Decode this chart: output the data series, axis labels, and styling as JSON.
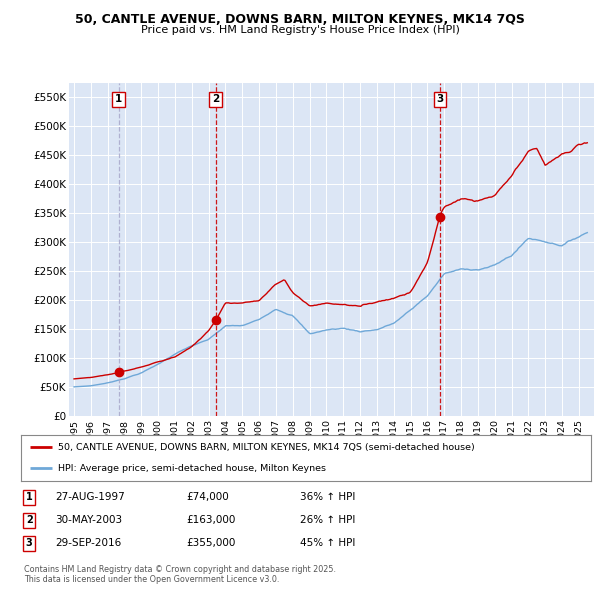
{
  "title": "50, CANTLE AVENUE, DOWNS BARN, MILTON KEYNES, MK14 7QS",
  "subtitle": "Price paid vs. HM Land Registry's House Price Index (HPI)",
  "ylim": [
    0,
    575000
  ],
  "yticks": [
    0,
    50000,
    100000,
    150000,
    200000,
    250000,
    300000,
    350000,
    400000,
    450000,
    500000,
    550000
  ],
  "ytick_labels": [
    "£0",
    "£50K",
    "£100K",
    "£150K",
    "£200K",
    "£250K",
    "£300K",
    "£350K",
    "£400K",
    "£450K",
    "£500K",
    "£550K"
  ],
  "plot_bg_color": "#dce6f5",
  "sale_dates": [
    1997.65,
    2003.41,
    2016.74
  ],
  "sale_prices": [
    74000,
    163000,
    355000
  ],
  "sale_labels": [
    "1",
    "2",
    "3"
  ],
  "sale_marker_colors": [
    "#cc0000",
    "#cc0000",
    "#cc0000"
  ],
  "vline_colors": [
    "#aaaacc",
    "#cc0000",
    "#cc0000"
  ],
  "legend_line1": "50, CANTLE AVENUE, DOWNS BARN, MILTON KEYNES, MK14 7QS (semi-detached house)",
  "legend_line2": "HPI: Average price, semi-detached house, Milton Keynes",
  "table_entries": [
    [
      "1",
      "27-AUG-1997",
      "£74,000",
      "36% ↑ HPI"
    ],
    [
      "2",
      "30-MAY-2003",
      "£163,000",
      "26% ↑ HPI"
    ],
    [
      "3",
      "29-SEP-2016",
      "£355,000",
      "45% ↑ HPI"
    ]
  ],
  "footer": "Contains HM Land Registry data © Crown copyright and database right 2025.\nThis data is licensed under the Open Government Licence v3.0.",
  "red_color": "#cc0000",
  "blue_color": "#6fa8d8",
  "dashed_red": "#dd3333",
  "dashed_gray": "#9999bb"
}
